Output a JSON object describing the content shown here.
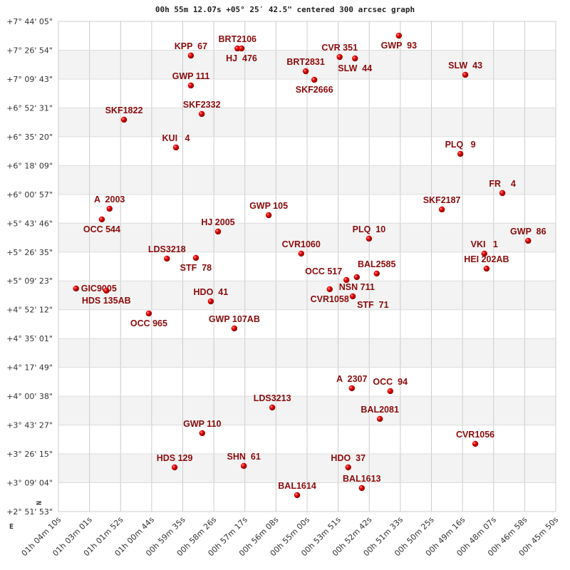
{
  "chart_data": {
    "type": "scatter",
    "title": "00h 55m 12.07s +05° 25′ 42.5\" centered 300 arcsec graph",
    "xlabel": "",
    "ylabel": "",
    "x_axis": "right ascension, decreasing to the right",
    "y_axis": "declination",
    "xlim": [
      "01h 04m 10s",
      "00h 45m 50s"
    ],
    "ylim": [
      "+2° 51' 53\"",
      "+7° 44' 05\""
    ],
    "grid": true,
    "alternating_bands": true,
    "compass": {
      "north": "N",
      "east": "E"
    },
    "x_ticks": [
      "01h 04m 10s",
      "01h 03m 01s",
      "01h 01m 52s",
      "01h 00m 44s",
      "00h 59m 35s",
      "00h 58m 26s",
      "00h 57m 17s",
      "00h 56m 08s",
      "00h 55m 00s",
      "00h 53m 51s",
      "00h 52m 42s",
      "00h 51m 33s",
      "00h 50m 25s",
      "00h 49m 16s",
      "00h 48m 07s",
      "00h 46m 58s",
      "00h 45m 50s"
    ],
    "y_ticks": [
      "+7° 44' 05\"",
      "+7° 26' 54\"",
      "+7° 09' 43\"",
      "+6° 52' 31\"",
      "+6° 35' 20\"",
      "+6° 18' 09\"",
      "+6° 00' 57\"",
      "+5° 43' 46\"",
      "+5° 26' 35\"",
      "+5° 09' 23\"",
      "+4° 52' 12\"",
      "+4° 35' 01\"",
      "+4° 17' 49\"",
      "+4° 00' 38\"",
      "+3° 43' 27\"",
      "+3° 26' 15\"",
      "+3° 09' 04\"",
      "+2° 51' 53\""
    ],
    "colors": {
      "label": "#8b0a0a",
      "marker": "#dd0000",
      "band": "#f3f3f3",
      "grid": "#cccccc"
    },
    "points": [
      {
        "name": "KPP  67",
        "ra": "00h59m17s",
        "dec": "+7°23'42\""
      },
      {
        "name": "BRT2106",
        "ra": "00h57m34s",
        "dec": "+7°27'57\""
      },
      {
        "name": "HJ  476",
        "ra": "00h57m25s",
        "dec": "+7°27'57\""
      },
      {
        "name": "GWP 111",
        "ra": "00h59m17s",
        "dec": "+7°05'52\""
      },
      {
        "name": "SKF2332",
        "ra": "00h58m53s",
        "dec": "+6°48'53\""
      },
      {
        "name": "SKF1822",
        "ra": "01h01m45s",
        "dec": "+6°45'29\""
      },
      {
        "name": "KUI   4",
        "ra": "00h59m50s",
        "dec": "+6°28'55\""
      },
      {
        "name": "GWP  93",
        "ra": "00h51m37s",
        "dec": "+7°35'35\""
      },
      {
        "name": "CVR 351",
        "ra": "00h53m48s",
        "dec": "+7°22'51\""
      },
      {
        "name": "SLW  44",
        "ra": "00h53m14s",
        "dec": "+7°22'00\""
      },
      {
        "name": "BRT2831",
        "ra": "00h55m03s",
        "dec": "+7°14'21\""
      },
      {
        "name": "SKF2666",
        "ra": "00h54m44s",
        "dec": "+7°09'16\""
      },
      {
        "name": "SLW  43",
        "ra": "00h49m10s",
        "dec": "+7°12'14\""
      },
      {
        "name": "PLQ   9",
        "ra": "00h49m21s",
        "dec": "+6°25'06\""
      },
      {
        "name": "A  2003",
        "ra": "01h02m17s",
        "dec": "+5°52'24\""
      },
      {
        "name": "OCC 544",
        "ra": "01h02m34s",
        "dec": "+5°46'02\""
      },
      {
        "name": "GWP 105",
        "ra": "00h56m25s",
        "dec": "+5°48'34\""
      },
      {
        "name": "HJ 2005",
        "ra": "00h58m17s",
        "dec": "+5°38'48\""
      },
      {
        "name": "LDS3218",
        "ra": "01h00m10s",
        "dec": "+5°22'40\""
      },
      {
        "name": "STF  78",
        "ra": "00h59m06s",
        "dec": "+5°23'06\""
      },
      {
        "name": "CVR1060",
        "ra": "00h55m13s",
        "dec": "+5°25'39\""
      },
      {
        "name": "GIC9005",
        "ra": "01h03m31s",
        "dec": "+5°04'50\""
      },
      {
        "name": "HDS 135AB",
        "ra": "01h02m24s",
        "dec": "+5°03'34\""
      },
      {
        "name": "HDO  41",
        "ra": "00h58m33s",
        "dec": "+4°57'11\""
      },
      {
        "name": "OCC 965",
        "ra": "01h00m50s",
        "dec": "+4°49'58\""
      },
      {
        "name": "GWP 107AB",
        "ra": "00h57m41s",
        "dec": "+4°41'03\""
      },
      {
        "name": "FR    4",
        "ra": "00h47m48s",
        "dec": "+6°01'44\""
      },
      {
        "name": "SKF2187",
        "ra": "00h50m02s",
        "dec": "+5°51'58\""
      },
      {
        "name": "PLQ  10",
        "ra": "00h52m43s",
        "dec": "+5°34'34\""
      },
      {
        "name": "GWP  86",
        "ra": "00h46m51s",
        "dec": "+5°33'17\""
      },
      {
        "name": "VKI   1",
        "ra": "00h48m28s",
        "dec": "+5°25'39\""
      },
      {
        "name": "HEI 202AB",
        "ra": "00h48m23s",
        "dec": "+5°16'43\""
      },
      {
        "name": "BAL2585",
        "ra": "00h52m26s",
        "dec": "+5°13'45\""
      },
      {
        "name": "NSN 711",
        "ra": "00h53m10s",
        "dec": "+5°11'38\""
      },
      {
        "name": "OCC 517",
        "ra": "00h53m33s",
        "dec": "+5°09'56\""
      },
      {
        "name": "CVR1058",
        "ra": "00h54m10s",
        "dec": "+5°04'25\""
      },
      {
        "name": "STF  71",
        "ra": "00h53m19s",
        "dec": "+5°00'10\""
      },
      {
        "name": "A  2307",
        "ra": "00h53m21s",
        "dec": "+4°05'23\""
      },
      {
        "name": "OCC  94",
        "ra": "00h51m56s",
        "dec": "+4°03'41\""
      },
      {
        "name": "LDS3213",
        "ra": "00h56m17s",
        "dec": "+3°53'55\""
      },
      {
        "name": "BAL2081",
        "ra": "00h52m19s",
        "dec": "+3°47'07\""
      },
      {
        "name": "GWP 110",
        "ra": "00h58m52s",
        "dec": "+3°38'38\""
      },
      {
        "name": "CVR1056",
        "ra": "00h48m48s",
        "dec": "+3°32'15\""
      },
      {
        "name": "HDS 129",
        "ra": "00h59m53s",
        "dec": "+3°18'15\""
      },
      {
        "name": "SHN  61",
        "ra": "00h57m20s",
        "dec": "+3°19'05\""
      },
      {
        "name": "HDO  37",
        "ra": "00h53m29s",
        "dec": "+3°18'15\""
      },
      {
        "name": "BAL1613",
        "ra": "00h52m59s",
        "dec": "+3°05'56\""
      },
      {
        "name": "BAL1614",
        "ra": "00h55m22s",
        "dec": "+3°01'41\""
      }
    ]
  }
}
